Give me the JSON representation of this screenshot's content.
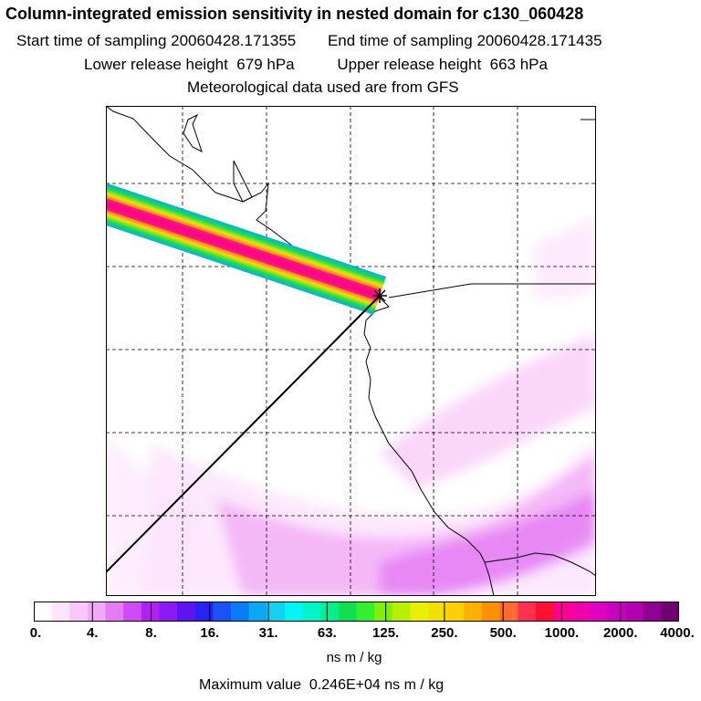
{
  "title": "Column-integrated emission sensitivity in nested domain for c130_060428",
  "start_label": "Start time of sampling",
  "start_value": "20060428.171355",
  "end_label": "End time of sampling",
  "end_value": "20060428.171435",
  "lower_label": "Lower release height",
  "lower_value": "679 hPa",
  "upper_label": "Upper release height",
  "upper_value": "663 hPa",
  "met_line": "Meteorological data used are from GFS",
  "colorbar": {
    "labels": [
      "0.",
      "4.",
      "8.",
      "16.",
      "31.",
      "63.",
      "125.",
      "250.",
      "500.",
      "1000.",
      "2000.",
      "4000."
    ],
    "colors": [
      "#ffffff",
      "#fde6fd",
      "#f8c9f8",
      "#f1a8f5",
      "#e37cf5",
      "#cf4bf5",
      "#b11ff5",
      "#8a1af2",
      "#5c14f0",
      "#2a22f2",
      "#1a52f5",
      "#0a7cf7",
      "#0aa8f5",
      "#12d2f0",
      "#00f5f5",
      "#00f5c8",
      "#00f090",
      "#10e050",
      "#30f030",
      "#80f000",
      "#b8f000",
      "#e6f000",
      "#f0e000",
      "#ffd000",
      "#ffb000",
      "#ff9000",
      "#ff6a30",
      "#ff3050",
      "#ff1030",
      "#ff0090",
      "#f000a8",
      "#e000c0",
      "#c800c0",
      "#b000b0",
      "#900090",
      "#700070"
    ],
    "units": "ns m / kg"
  },
  "max_label": "Maximum value",
  "max_value": "0.246E+04",
  "max_units": "ns m / kg"
}
